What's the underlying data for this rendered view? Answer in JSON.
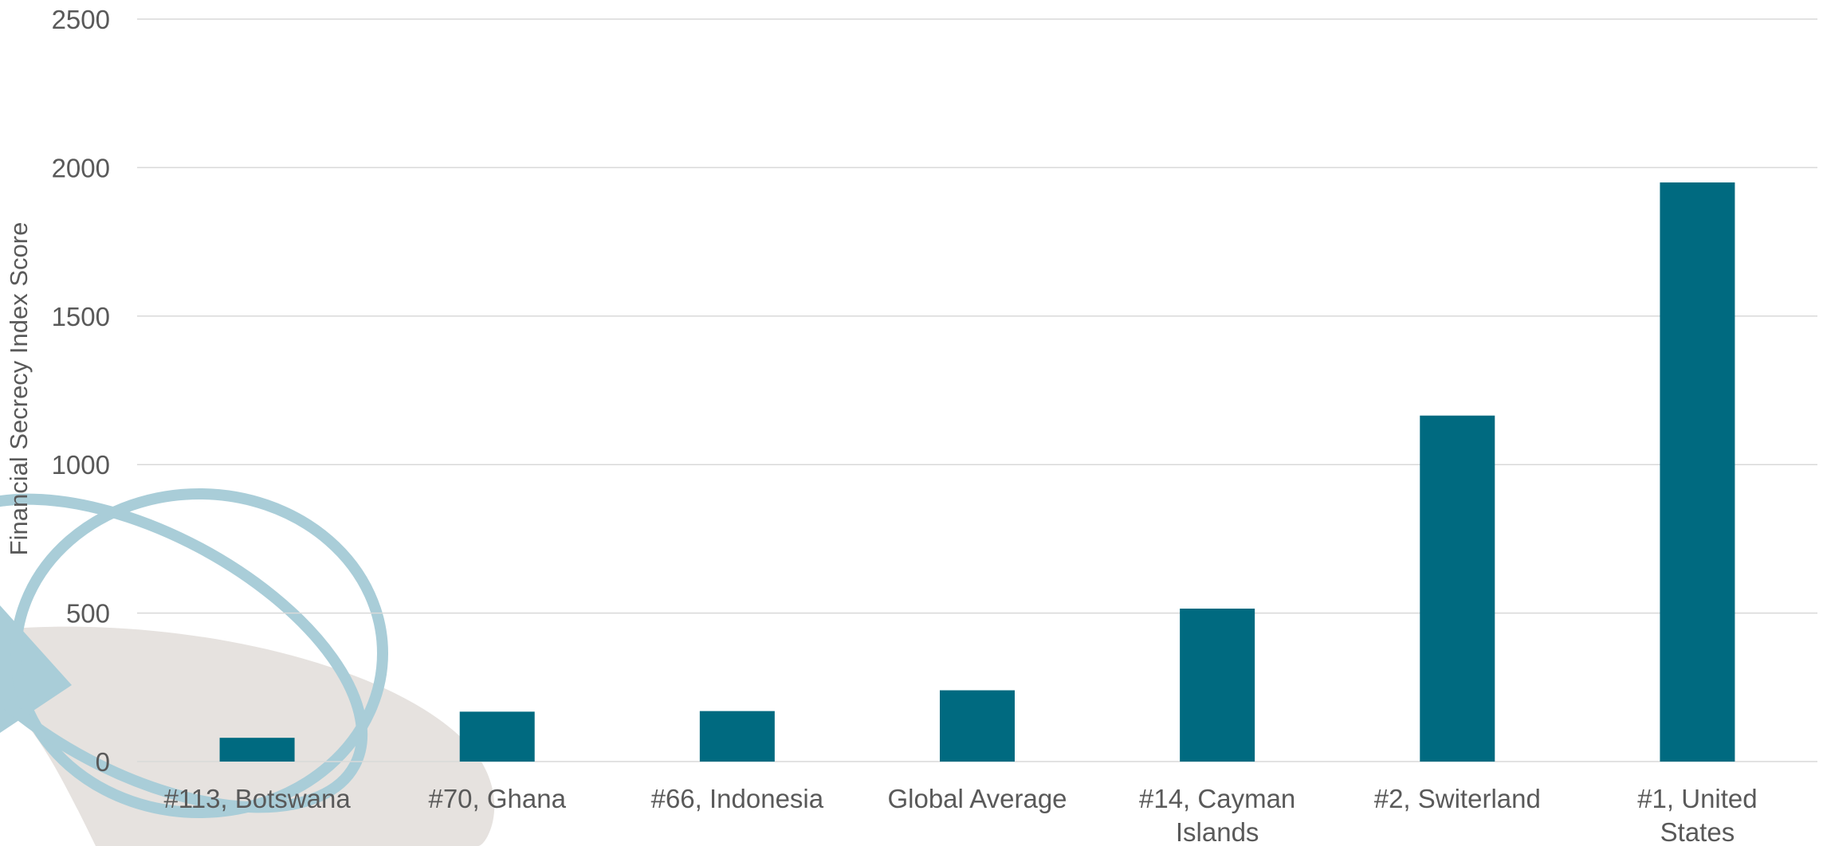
{
  "colors": {
    "bar": "#006a80",
    "gridline": "#d9d9d9",
    "axis_text": "#595959",
    "watermark_ring": "#a9cdd8",
    "watermark_fill": "#e6e2df"
  },
  "watermark": {
    "icon": "globe-orbit-logo"
  },
  "chart_data": {
    "type": "bar",
    "categories": [
      "#113, Botswana",
      "#70, Ghana",
      "#66, Indonesia",
      "Global Average",
      "#14, Cayman Islands",
      "#2, Switerland",
      "#1, United States"
    ],
    "series": [
      {
        "values": [
          80,
          168,
          170,
          240,
          515,
          1165,
          1950
        ]
      }
    ],
    "title": "",
    "xlabel": "",
    "ylabel": "Financial Secrecy Index Score",
    "ylim": [
      0,
      2500
    ],
    "yticks": [
      0,
      500,
      1000,
      1500,
      2000,
      2500
    ],
    "grid": true,
    "legend": "none"
  }
}
